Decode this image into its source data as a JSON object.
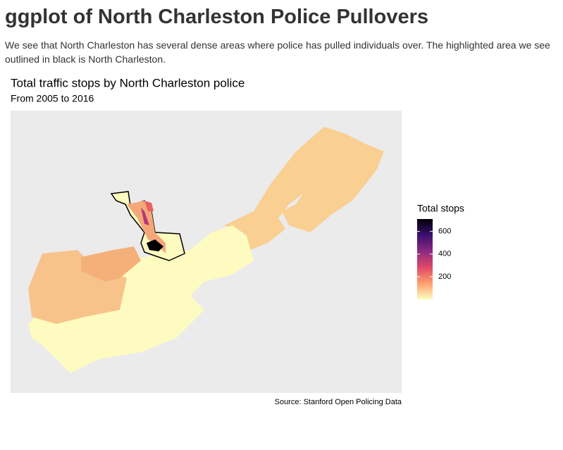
{
  "header": {
    "title": "ggplot of North Charleston Police Pullovers",
    "paragraph": "We see that North Charleston has several dense areas where police has pulled individuals over. The highlighted area we see outlined in black is North Charleston."
  },
  "chart_data": {
    "type": "choropleth",
    "title": "Total traffic stops by North Charleston police",
    "subtitle": "From 2005 to 2016",
    "legend_title": "Total stops",
    "legend_lim": [
      0,
      710
    ],
    "legend_ticks": [
      200,
      400,
      600
    ],
    "colors": [
      "#fcfdbf",
      "#fe9f6d",
      "#de4968",
      "#8c2981",
      "#3b0f70",
      "#000004"
    ],
    "caption": "Source: Stanford Open Policing Data"
  }
}
